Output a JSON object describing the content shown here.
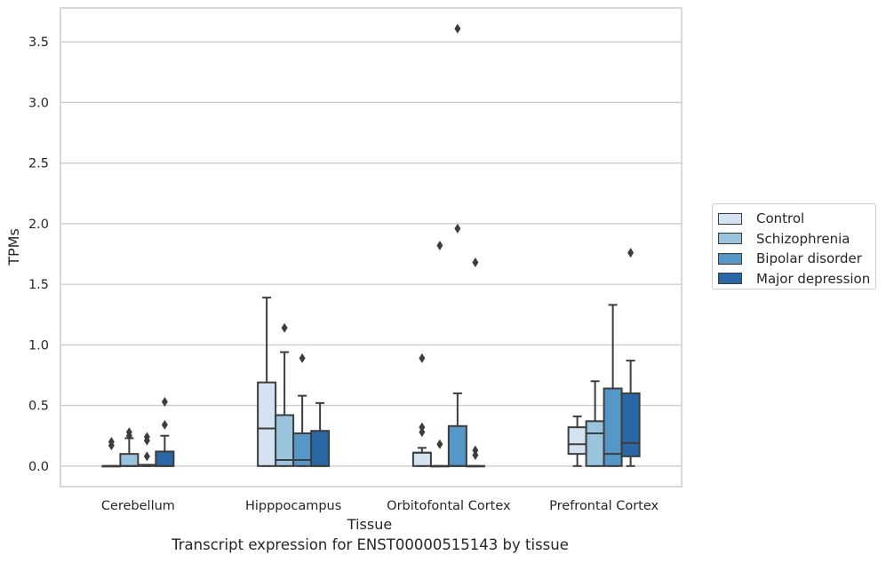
{
  "caption": "Transcript expression for ENST00000515143 by tissue",
  "colors": {
    "grid": "#cccccc",
    "line": "#3d3d3d",
    "text": "#262626"
  },
  "chart_data": {
    "type": "boxplot",
    "xlabel": "Tissue",
    "ylabel": "TPMs",
    "ylim": [
      -0.17,
      3.78
    ],
    "yticks": [
      "0.0",
      "0.5",
      "1.0",
      "1.5",
      "2.0",
      "2.5",
      "3.0",
      "3.5"
    ],
    "categories": [
      "Cerebellum",
      "Hipppocampus",
      "Orbitofontal Cortex",
      "Prefrontal Cortex"
    ],
    "grid": "y",
    "legend_position": "right",
    "series": [
      {
        "name": "Control",
        "color": "#d4e3f2",
        "boxes": [
          {
            "q1": 0,
            "median": 0,
            "q3": 0,
            "whisker_low": 0,
            "whisker_high": 0,
            "outliers": [
              0.17,
              0.2
            ]
          },
          {
            "q1": 0,
            "median": 0.31,
            "q3": 0.69,
            "whisker_low": 0,
            "whisker_high": 1.39,
            "outliers": []
          },
          {
            "q1": 0,
            "median": 0.11,
            "q3": 0.11,
            "whisker_low": 0,
            "whisker_high": 0.15,
            "outliers": [
              0.28,
              0.32,
              0.89
            ]
          },
          {
            "q1": 0.1,
            "median": 0.18,
            "q3": 0.32,
            "whisker_low": 0,
            "whisker_high": 0.41,
            "outliers": []
          }
        ]
      },
      {
        "name": "Schizophrenia",
        "color": "#9ac3de",
        "boxes": [
          {
            "q1": 0,
            "median": 0,
            "q3": 0.1,
            "whisker_low": 0,
            "whisker_high": 0.23,
            "outliers": [
              0.25,
              0.28
            ]
          },
          {
            "q1": 0,
            "median": 0.05,
            "q3": 0.42,
            "whisker_low": 0,
            "whisker_high": 0.94,
            "outliers": [
              1.14
            ]
          },
          {
            "q1": 0,
            "median": 0,
            "q3": 0,
            "whisker_low": 0,
            "whisker_high": 0,
            "outliers": [
              0.18,
              1.82
            ]
          },
          {
            "q1": 0,
            "median": 0.27,
            "q3": 0.37,
            "whisker_low": 0,
            "whisker_high": 0.7,
            "outliers": []
          }
        ]
      },
      {
        "name": "Bipolar disorder",
        "color": "#5597c6",
        "boxes": [
          {
            "q1": 0,
            "median": 0.01,
            "q3": 0.01,
            "whisker_low": 0,
            "whisker_high": 0.01,
            "outliers": [
              0.08,
              0.21,
              0.24
            ]
          },
          {
            "q1": 0,
            "median": 0.05,
            "q3": 0.27,
            "whisker_low": 0,
            "whisker_high": 0.58,
            "outliers": [
              0.89
            ]
          },
          {
            "q1": 0,
            "median": 0,
            "q3": 0.33,
            "whisker_low": 0,
            "whisker_high": 0.6,
            "outliers": [
              1.96,
              3.61
            ]
          },
          {
            "q1": 0,
            "median": 0.1,
            "q3": 0.64,
            "whisker_low": 0,
            "whisker_high": 1.33,
            "outliers": []
          }
        ]
      },
      {
        "name": "Major depression",
        "color": "#2a67a6",
        "boxes": [
          {
            "q1": 0,
            "median": 0,
            "q3": 0.12,
            "whisker_low": 0,
            "whisker_high": 0.25,
            "outliers": [
              0.34,
              0.53
            ]
          },
          {
            "q1": 0,
            "median": 0,
            "q3": 0.29,
            "whisker_low": 0,
            "whisker_high": 0.52,
            "outliers": []
          },
          {
            "q1": 0,
            "median": 0,
            "q3": 0,
            "whisker_low": 0,
            "whisker_high": 0,
            "outliers": [
              0.09,
              0.13,
              1.68
            ]
          },
          {
            "q1": 0.08,
            "median": 0.19,
            "q3": 0.6,
            "whisker_low": 0,
            "whisker_high": 0.87,
            "outliers": [
              1.76
            ]
          }
        ]
      }
    ]
  }
}
